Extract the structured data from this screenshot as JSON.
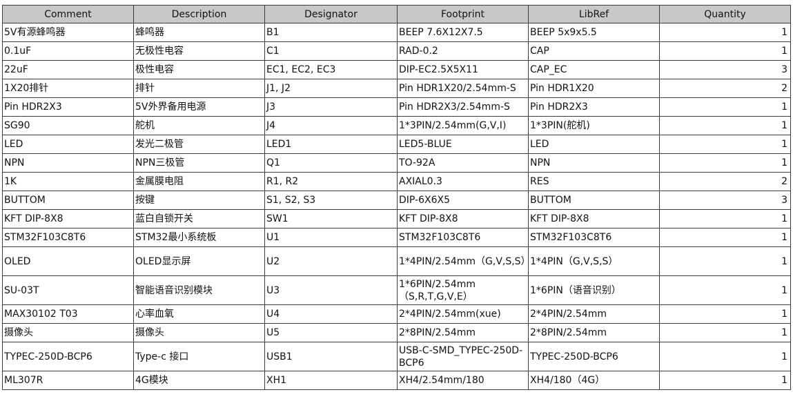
{
  "headers": [
    "Comment",
    "Description",
    "Designator",
    "Footprint",
    "LibRef",
    "Quantity"
  ],
  "rows": [
    [
      "5V有源蜂鸣器",
      "蜂鸣器",
      "B1",
      "BEEP 7.6X12X7.5",
      "BEEP 5x9x5.5",
      "1"
    ],
    [
      "0.1uF",
      "无极性电容",
      "C1",
      "RAD-0.2",
      "CAP",
      "1"
    ],
    [
      "22uF",
      "极性电容",
      "EC1, EC2, EC3",
      "DIP-EC2.5X5X11",
      "CAP_EC",
      "3"
    ],
    [
      "1X20排针",
      "排针",
      "J1, J2",
      "Pin HDR1X20/2.54mm-S",
      "Pin HDR1X20",
      "2"
    ],
    [
      "Pin HDR2X3",
      "5V外界备用电源",
      "J3",
      "Pin HDR2X3/2.54mm-S",
      "Pin HDR2X3",
      "1"
    ],
    [
      "SG90",
      "舵机",
      "J4",
      "1*3PIN/2.54mm(G,V,I)",
      "1*3PIN(舵机)",
      "1"
    ],
    [
      "LED",
      "发光二极管",
      "LED1",
      "LED5-BLUE",
      "LED",
      "1"
    ],
    [
      "NPN",
      "NPN三极管",
      "Q1",
      "TO-92A",
      "NPN",
      "1"
    ],
    [
      "1K",
      "金属膜电阻",
      "R1, R2",
      "AXIAL0.3",
      "RES",
      "2"
    ],
    [
      "BUTTOM",
      "按键",
      "S1, S2, S3",
      "DIP-6X6X5",
      "BUTTOM",
      "3"
    ],
    [
      "KFT DIP-8X8",
      "蓝白自锁开关",
      "SW1",
      "KFT DIP-8X8",
      "KFT DIP-8X8",
      "1"
    ],
    [
      "STM32F103C8T6",
      "STM32最小系统板",
      "U1",
      "STM32F103C8T6",
      "STM32F103C8T6",
      "1"
    ],
    [
      "OLED",
      "OLED显示屏",
      "U2",
      "1*4PIN/2.54mm（G,V,S,S）",
      "1*4PIN（G,V,S,S）",
      "1"
    ],
    [
      "SU-03T",
      "智能语音识别模块",
      "U3",
      "1*6PIN/2.54mm（S,R,T,G,V,E）",
      "1*6PIN（语音识别）",
      "1"
    ],
    [
      "MAX30102 T03",
      "心率血氧",
      "U4",
      "2*4PIN/2.54mm(xue)",
      "2*4PIN/2.54mm",
      "1"
    ],
    [
      "摄像头",
      "摄像头",
      "U5",
      "2*8PIN/2.54mm",
      "2*8PIN/2.54mm",
      "1"
    ],
    [
      "TYPEC-250D-BCP6",
      "Type-c 接口",
      "USB1",
      "USB-C-SMD_TYPEC-250D-BCP6",
      "TYPEC-250D-BCP6",
      "1"
    ],
    [
      "ML307R",
      "4G模块",
      "XH1",
      "XH4/2.54mm/180",
      "XH4/180（4G）",
      "1"
    ]
  ],
  "colors": {
    "header_bg": "#c8c8c8",
    "border": "#3a3a3a"
  }
}
